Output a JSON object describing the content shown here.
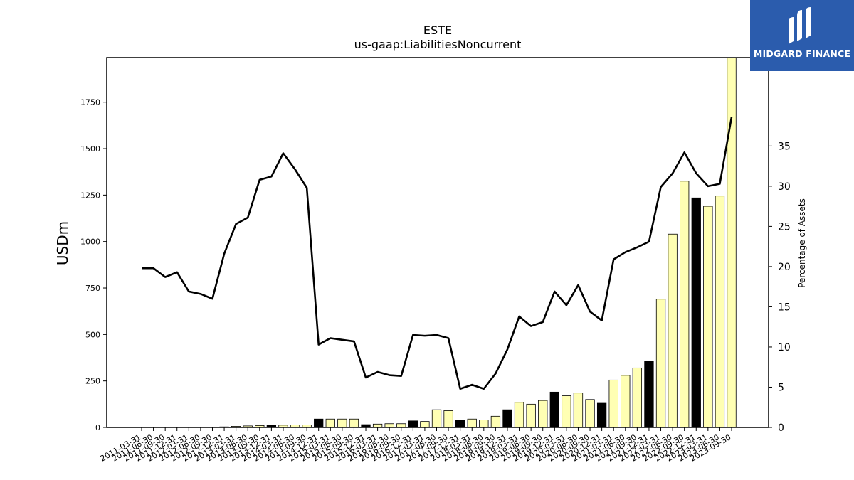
{
  "header": {
    "title_line1": "ESTE",
    "title_line2": "us-gaap:LiabilitiesNoncurrent"
  },
  "logo": {
    "text": "MIDGARD FINANCE",
    "bg_color": "#2b5cad"
  },
  "chart_data": {
    "type": "bar",
    "title": "ESTE",
    "subtitle": "us-gaap:LiabilitiesNoncurrent",
    "ylabel": "USDm",
    "y2label": "Percentage of Assets",
    "ylim": [
      0,
      1990
    ],
    "y2lim": [
      0,
      46
    ],
    "yticks": [
      0,
      250,
      500,
      750,
      1000,
      1250,
      1500,
      1750
    ],
    "y2ticks": [
      0,
      5,
      10,
      15,
      20,
      25,
      30,
      35
    ],
    "colors": {
      "bar_fill": "#ffffb3",
      "bar_q4_fill": "#000000",
      "bar_edge": "#000000",
      "line": "#000000"
    },
    "categories": [
      "2011-03-31",
      "2011-06-30",
      "2011-09-30",
      "2011-12-31",
      "2012-03-31",
      "2012-06-30",
      "2012-09-30",
      "2012-12-31",
      "2013-03-31",
      "2013-06-30",
      "2013-09-30",
      "2013-12-31",
      "2014-03-31",
      "2014-06-30",
      "2014-09-30",
      "2014-12-31",
      "2015-03-31",
      "2015-06-30",
      "2015-09-30",
      "2015-12-31",
      "2016-03-31",
      "2016-06-30",
      "2016-09-30",
      "2016-12-31",
      "2017-03-31",
      "2017-06-30",
      "2017-09-30",
      "2017-12-31",
      "2018-03-31",
      "2018-06-30",
      "2018-09-30",
      "2018-12-31",
      "2019-03-31",
      "2019-06-30",
      "2019-09-30",
      "2019-12-31",
      "2020-03-31",
      "2020-06-30",
      "2020-09-30",
      "2020-12-31",
      "2021-03-31",
      "2021-06-30",
      "2021-09-30",
      "2021-12-31",
      "2022-03-31",
      "2022-06-30",
      "2022-09-30",
      "2022-12-31",
      "2023-03-31",
      "2023-06-30",
      "2023-09-30"
    ],
    "series": [
      {
        "type": "bar",
        "axis": "left",
        "values": [
          0,
          0,
          0,
          0,
          0,
          0,
          0,
          3,
          6,
          8,
          10,
          12,
          12,
          13,
          13,
          45,
          45,
          45,
          45,
          15,
          18,
          20,
          20,
          35,
          32,
          95,
          90,
          40,
          45,
          40,
          60,
          95,
          135,
          125,
          145,
          190,
          170,
          185,
          150,
          130,
          255,
          280,
          320,
          355,
          690,
          1040,
          1325,
          1235,
          1190,
          1245,
          1990
        ]
      },
      {
        "type": "line",
        "axis": "right",
        "values": [
          19.8,
          19.8,
          18.7,
          19.3,
          16.9,
          16.6,
          16.0,
          21.6,
          25.3,
          26.1,
          30.8,
          31.2,
          34.1,
          32.1,
          29.8,
          10.3,
          11.1,
          10.9,
          10.7,
          6.2,
          6.9,
          6.5,
          6.4,
          11.5,
          11.4,
          11.5,
          11.1,
          4.8,
          5.3,
          4.8,
          6.7,
          9.7,
          13.8,
          12.6,
          13.1,
          16.9,
          15.2,
          17.7,
          14.4,
          13.3,
          20.9,
          21.8,
          22.4,
          23.1,
          29.9,
          31.6,
          34.2,
          31.6,
          30.0,
          30.3,
          38.6
        ]
      }
    ]
  }
}
